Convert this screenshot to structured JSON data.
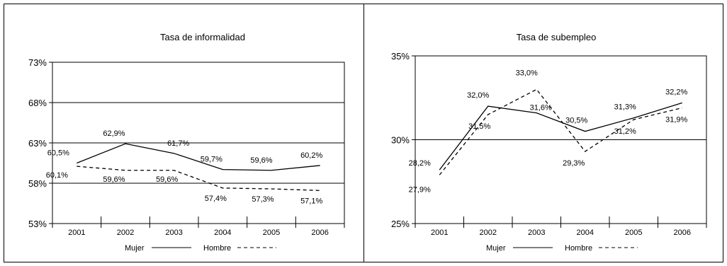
{
  "chart_data": [
    {
      "type": "line",
      "title": "Tasa de informalidad",
      "categories": [
        "2001",
        "2002",
        "2003",
        "2004",
        "2005",
        "2006"
      ],
      "ylim": [
        53,
        73
      ],
      "yticks": [
        53,
        58,
        63,
        68,
        73
      ],
      "ytick_labels": [
        "53%",
        "58%",
        "63%",
        "68%",
        "73%"
      ],
      "grid": true,
      "legend": {
        "placement": "bottom",
        "labels": [
          "Mujer",
          "Hombre"
        ]
      },
      "series": [
        {
          "name": "Mujer",
          "style": "solid",
          "values": [
            60.5,
            62.9,
            61.7,
            59.7,
            59.6,
            60.2
          ],
          "labels": [
            "60,5%",
            "62,9%",
            "61,7%",
            "59,7%",
            "59,6%",
            "60,2%"
          ]
        },
        {
          "name": "Hombre",
          "style": "dashed",
          "values": [
            60.1,
            59.6,
            59.6,
            57.4,
            57.3,
            57.1
          ],
          "labels": [
            "60,1%",
            "59,6%",
            "59,6%",
            "57,4%",
            "57,3%",
            "57,1%"
          ]
        }
      ]
    },
    {
      "type": "line",
      "title": "Tasa de subempleo",
      "categories": [
        "2001",
        "2002",
        "2003",
        "2004",
        "2005",
        "2006"
      ],
      "ylim": [
        25,
        35
      ],
      "yticks": [
        25,
        30,
        35
      ],
      "ytick_labels": [
        "25%",
        "30%",
        "35%"
      ],
      "grid": true,
      "legend": {
        "placement": "bottom",
        "labels": [
          "Mujer",
          "Hombre"
        ]
      },
      "series": [
        {
          "name": "Mujer",
          "style": "solid",
          "values": [
            28.2,
            32.0,
            31.6,
            30.5,
            31.3,
            32.2
          ],
          "labels": [
            "28,2%",
            "32,0%",
            "31,6%",
            "30,5%",
            "31,3%",
            "32,2%"
          ]
        },
        {
          "name": "Hombre",
          "style": "dashed",
          "values": [
            27.9,
            31.5,
            33.0,
            29.3,
            31.2,
            31.9
          ],
          "labels": [
            "27,9%",
            "31,5%",
            "33,0%",
            "29,3%",
            "31,2%",
            "31,9%"
          ]
        }
      ]
    }
  ]
}
